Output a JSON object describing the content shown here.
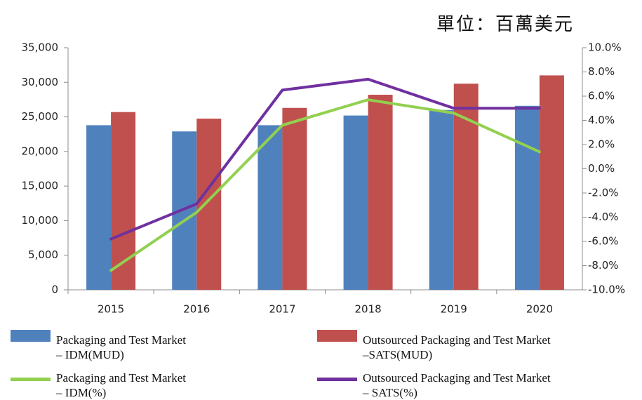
{
  "chart_data": {
    "type": "bar-line",
    "unit_label": "單位：百萬美元",
    "categories": [
      "2015",
      "2016",
      "2017",
      "2018",
      "2019",
      "2020"
    ],
    "series": [
      {
        "name": "Packaging and Test Market\n– IDM(MUD)",
        "color": "#4f81bd",
        "type": "bar",
        "values": [
          23800,
          22900,
          23800,
          25200,
          26000,
          26600
        ]
      },
      {
        "name": "Outsourced Packaging and Test Market\n–SATS(MUD)",
        "color": "#c0504d",
        "type": "bar",
        "values": [
          25700,
          24750,
          26300,
          28200,
          29800,
          31000
        ]
      },
      {
        "name": "Packaging and Test Market\n– IDM(%)",
        "color": "#92d050",
        "type": "line",
        "axis": "y2",
        "values": [
          -8.4,
          -3.6,
          3.6,
          5.7,
          4.6,
          1.4
        ]
      },
      {
        "name": "Outsourced Packaging and Test Market\n– SATS(%)",
        "color": "#7030a0",
        "type": "line",
        "axis": "y2",
        "values": [
          -5.8,
          -2.9,
          6.5,
          7.4,
          5.0,
          5.0
        ]
      }
    ],
    "ylim": [
      0,
      35000
    ],
    "yticks": [
      0,
      {
        "value": 5000,
        "label": "5,000"
      },
      {
        "value": 10000,
        "label": "10,000"
      },
      {
        "value": 15000,
        "label": "15,000"
      },
      {
        "value": 20000,
        "label": "20,000"
      },
      {
        "value": 25000,
        "label": "25,000"
      },
      {
        "value": 30000,
        "label": "30,000"
      },
      {
        "value": 35000,
        "label": "35,000"
      }
    ],
    "y2lim": [
      -10,
      10
    ],
    "y2ticks": [
      {
        "value": -10,
        "label": "-10.0%"
      },
      {
        "value": -8,
        "label": "-8.0%"
      },
      {
        "value": -6,
        "label": "-6.0%"
      },
      {
        "value": -4,
        "label": "-4.0%"
      },
      {
        "value": -2,
        "label": "-2.0%"
      },
      {
        "value": 0,
        "label": "0.0%"
      },
      {
        "value": 2,
        "label": "2.0%"
      },
      {
        "value": 4,
        "label": "4.0%"
      },
      {
        "value": 6,
        "label": "6.0%"
      },
      {
        "value": 8,
        "label": "8.0%"
      },
      {
        "value": 10,
        "label": "10.0%"
      }
    ],
    "grid": false
  }
}
